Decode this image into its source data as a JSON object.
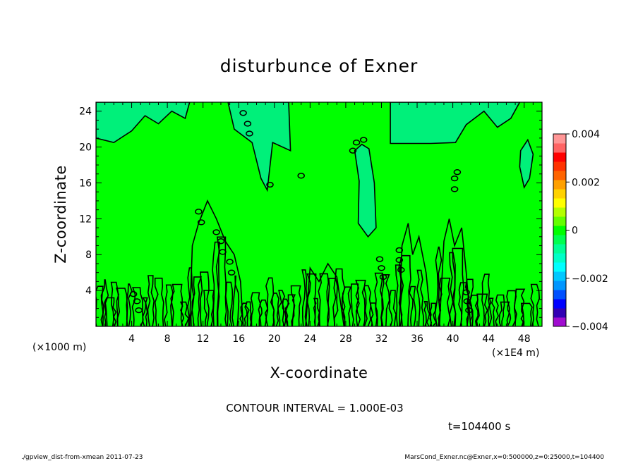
{
  "chart_data": {
    "type": "heatmap",
    "title": "disturbunce of Exner",
    "xlabel": "X-coordinate",
    "ylabel": "Z-coordinate",
    "x_unit": "(×1E4 m)",
    "y_unit": "(×1000 m)",
    "xlim": [
      0,
      50
    ],
    "ylim": [
      0,
      25
    ],
    "x_ticks": [
      4,
      8,
      12,
      16,
      20,
      24,
      28,
      32,
      36,
      40,
      44,
      48
    ],
    "x_tick_labels": [
      "4",
      "8",
      "12",
      "16",
      "20",
      "24",
      "28",
      "32",
      "36",
      "40",
      "44",
      "48"
    ],
    "y_ticks": [
      4,
      8,
      12,
      16,
      20,
      24
    ],
    "y_tick_labels": [
      "4",
      "8",
      "12",
      "16",
      "20",
      "24"
    ],
    "colorbar": {
      "range": [
        -0.004,
        0.004
      ],
      "tick_values": [
        -0.004,
        -0.002,
        0,
        0.002,
        0.004
      ],
      "tick_labels": [
        "−0.004",
        "−0.002",
        "0",
        "0.002",
        "0.004"
      ],
      "colors": [
        "#a00cd0",
        "#3200b4",
        "#0000ff",
        "#0050ff",
        "#0096ff",
        "#00c8ff",
        "#00ffff",
        "#00ffc8",
        "#00ff96",
        "#00ff50",
        "#00ff00",
        "#64ff00",
        "#b4ff00",
        "#ffff00",
        "#ffd200",
        "#ffa000",
        "#ff6400",
        "#ff3200",
        "#ff0000",
        "#ff6464",
        "#ff9696"
      ]
    },
    "field_fill_color": "#00ff00",
    "secondary_region_color": "#00f07a",
    "contour_interval_text": "CONTOUR INTERVAL = 1.000E-03",
    "time_text": "t=104400 s",
    "grid": false
  },
  "footer": {
    "left": "./gpview_dist-from-xmean  2011-07-23",
    "right": "MarsCond_Exner.nc@Exner,x=0:500000,z=0:25000,t=104400"
  }
}
